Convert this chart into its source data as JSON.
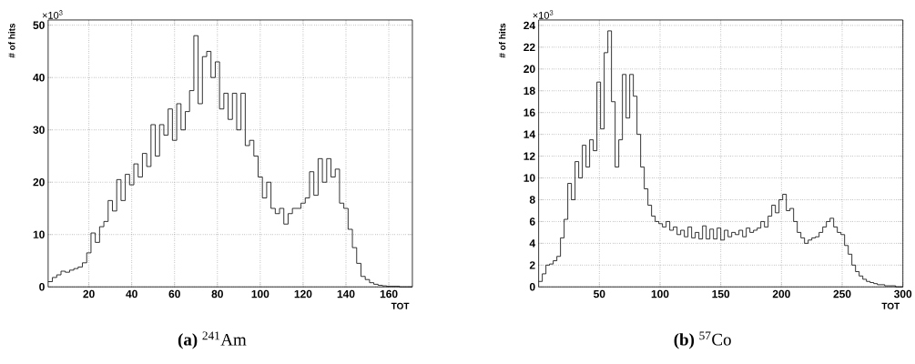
{
  "chart_data": [
    {
      "type": "histogram",
      "title": "**(a)** $^{241}$Am",
      "xlabel": "TOT",
      "ylabel": "# of hits",
      "annotations": [
        "×10$^{3}$"
      ],
      "grid": true,
      "color": "#000000",
      "xlim": [
        1,
        171
      ],
      "ylim": [
        0,
        51
      ],
      "xticks": [
        20,
        40,
        60,
        80,
        100,
        120,
        140,
        160
      ],
      "yticks": [
        0,
        10,
        20,
        30,
        40,
        50
      ],
      "bins": [
        1,
        3,
        5,
        7,
        9,
        11,
        13,
        15,
        17,
        19,
        21,
        23,
        25,
        27,
        29,
        31,
        33,
        35,
        37,
        39,
        41,
        43,
        45,
        47,
        49,
        51,
        53,
        55,
        57,
        59,
        61,
        63,
        65,
        67,
        69,
        71,
        73,
        75,
        77,
        79,
        81,
        83,
        85,
        87,
        89,
        91,
        93,
        95,
        97,
        99,
        101,
        103,
        105,
        107,
        109,
        111,
        113,
        115,
        117,
        119,
        121,
        123,
        125,
        127,
        129,
        131,
        133,
        135,
        137,
        139,
        141,
        143,
        145,
        147,
        149,
        151,
        153,
        155,
        157,
        159,
        161,
        163,
        165,
        167,
        169,
        171
      ],
      "values": [
        1.0,
        1.8,
        2.3,
        3.0,
        2.8,
        3.2,
        3.5,
        3.8,
        4.6,
        6.5,
        10.3,
        8.5,
        11.5,
        12.5,
        16.5,
        14.5,
        20.5,
        16.5,
        21.5,
        19.5,
        23.5,
        21.0,
        25.5,
        23.0,
        31.0,
        25.0,
        31.0,
        29.0,
        34.0,
        28.0,
        35.0,
        30.0,
        33.5,
        37.5,
        48.0,
        35.0,
        44.0,
        45.0,
        40.0,
        43.0,
        34.0,
        37.0,
        32.0,
        37.0,
        30.0,
        37.0,
        27.0,
        28.0,
        25.0,
        21.0,
        17.0,
        20.0,
        15.0,
        14.0,
        15.0,
        12.0,
        14.0,
        15.0,
        15.0,
        16.0,
        17.0,
        22.0,
        17.5,
        24.5,
        20.0,
        24.5,
        21.0,
        22.5,
        16.0,
        15.0,
        11.0,
        7.5,
        4.5,
        2.0,
        1.4,
        0.8,
        0.5,
        0.3,
        0.2,
        0.1,
        0.1,
        0.1,
        0,
        0,
        0
      ]
    },
    {
      "type": "histogram",
      "title": "**(b)** $^{57}$Co",
      "xlabel": "TOT",
      "ylabel": "# of hits",
      "annotations": [
        "×10$^{3}$"
      ],
      "grid": true,
      "color": "#000000",
      "xlim": [
        0,
        300
      ],
      "ylim": [
        0,
        24.5
      ],
      "xticks": [
        50,
        100,
        150,
        200,
        250,
        300
      ],
      "yticks": [
        0,
        2,
        4,
        6,
        8,
        10,
        12,
        14,
        16,
        18,
        20,
        22,
        24
      ],
      "bins": [
        0,
        3,
        6,
        9,
        12,
        15,
        18,
        21,
        24,
        27,
        30,
        33,
        36,
        39,
        42,
        45,
        48,
        51,
        54,
        57,
        60,
        63,
        66,
        69,
        72,
        75,
        78,
        81,
        84,
        87,
        90,
        93,
        96,
        99,
        102,
        105,
        108,
        111,
        114,
        117,
        120,
        123,
        126,
        129,
        132,
        135,
        138,
        141,
        144,
        147,
        150,
        153,
        156,
        159,
        162,
        165,
        168,
        171,
        174,
        177,
        180,
        183,
        186,
        189,
        192,
        195,
        198,
        201,
        204,
        207,
        210,
        213,
        216,
        219,
        222,
        225,
        228,
        231,
        234,
        237,
        240,
        243,
        246,
        249,
        252,
        255,
        258,
        261,
        264,
        267,
        270,
        273,
        276,
        279,
        282,
        285,
        288,
        291,
        294,
        297,
        300
      ],
      "values": [
        0.5,
        1.2,
        2.0,
        2.1,
        2.4,
        2.8,
        4.5,
        6.2,
        9.5,
        8.0,
        11.5,
        10.0,
        13.0,
        11.0,
        13.5,
        12.5,
        18.8,
        14.5,
        21.5,
        23.5,
        17.0,
        11.0,
        13.5,
        19.5,
        15.5,
        19.5,
        17.5,
        14.0,
        11.0,
        9.0,
        7.5,
        6.5,
        6.0,
        5.8,
        5.5,
        6.0,
        5.2,
        5.5,
        4.8,
        5.2,
        4.6,
        5.5,
        4.5,
        5.0,
        4.4,
        5.6,
        4.4,
        5.3,
        4.4,
        5.4,
        4.3,
        5.2,
        4.6,
        5.0,
        4.8,
        5.2,
        4.6,
        5.4,
        5.0,
        5.2,
        5.4,
        6.0,
        5.5,
        6.5,
        7.5,
        6.8,
        8.0,
        8.5,
        7.0,
        7.2,
        6.0,
        5.0,
        4.5,
        4.0,
        4.3,
        4.5,
        4.6,
        5.0,
        5.5,
        6.0,
        6.3,
        5.5,
        5.0,
        4.8,
        3.8,
        3.0,
        2.0,
        1.4,
        1.0,
        0.7,
        0.5,
        0.4,
        0.3,
        0.2,
        0.2,
        0.1,
        0.1,
        0.1,
        0.0,
        0.0
      ]
    }
  ]
}
